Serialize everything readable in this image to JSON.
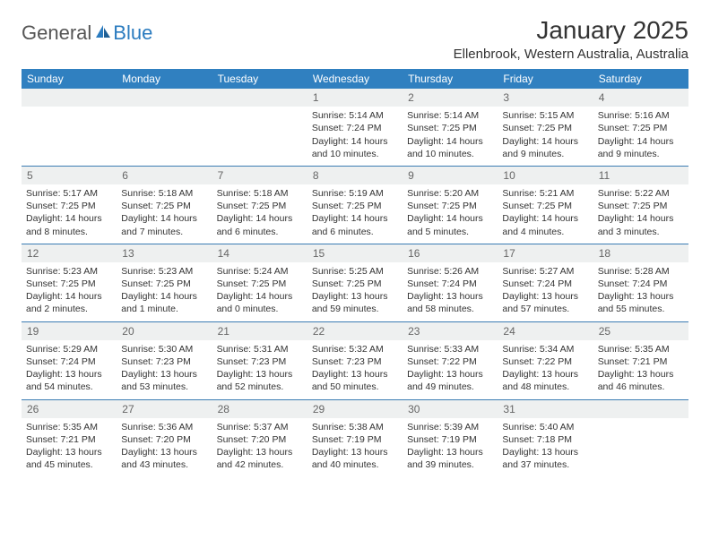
{
  "logo": {
    "text_general": "General",
    "text_blue": "Blue"
  },
  "title": "January 2025",
  "location": "Ellenbrook, Western Australia, Australia",
  "colors": {
    "header_bg": "#3080c0",
    "header_text": "#ffffff",
    "daynum_bg": "#eef0f0",
    "daynum_text": "#666666",
    "body_text": "#333333",
    "row_border": "#3b7cb3",
    "logo_gray": "#555555",
    "logo_blue": "#2a7bbf"
  },
  "typography": {
    "title_fontsize": 28,
    "location_fontsize": 15,
    "dayheader_fontsize": 12,
    "cell_fontsize": 10.5
  },
  "day_headers": [
    "Sunday",
    "Monday",
    "Tuesday",
    "Wednesday",
    "Thursday",
    "Friday",
    "Saturday"
  ],
  "weeks": [
    [
      null,
      null,
      null,
      {
        "n": "1",
        "sunrise": "5:14 AM",
        "sunset": "7:24 PM",
        "daylight": "14 hours and 10 minutes."
      },
      {
        "n": "2",
        "sunrise": "5:14 AM",
        "sunset": "7:25 PM",
        "daylight": "14 hours and 10 minutes."
      },
      {
        "n": "3",
        "sunrise": "5:15 AM",
        "sunset": "7:25 PM",
        "daylight": "14 hours and 9 minutes."
      },
      {
        "n": "4",
        "sunrise": "5:16 AM",
        "sunset": "7:25 PM",
        "daylight": "14 hours and 9 minutes."
      }
    ],
    [
      {
        "n": "5",
        "sunrise": "5:17 AM",
        "sunset": "7:25 PM",
        "daylight": "14 hours and 8 minutes."
      },
      {
        "n": "6",
        "sunrise": "5:18 AM",
        "sunset": "7:25 PM",
        "daylight": "14 hours and 7 minutes."
      },
      {
        "n": "7",
        "sunrise": "5:18 AM",
        "sunset": "7:25 PM",
        "daylight": "14 hours and 6 minutes."
      },
      {
        "n": "8",
        "sunrise": "5:19 AM",
        "sunset": "7:25 PM",
        "daylight": "14 hours and 6 minutes."
      },
      {
        "n": "9",
        "sunrise": "5:20 AM",
        "sunset": "7:25 PM",
        "daylight": "14 hours and 5 minutes."
      },
      {
        "n": "10",
        "sunrise": "5:21 AM",
        "sunset": "7:25 PM",
        "daylight": "14 hours and 4 minutes."
      },
      {
        "n": "11",
        "sunrise": "5:22 AM",
        "sunset": "7:25 PM",
        "daylight": "14 hours and 3 minutes."
      }
    ],
    [
      {
        "n": "12",
        "sunrise": "5:23 AM",
        "sunset": "7:25 PM",
        "daylight": "14 hours and 2 minutes."
      },
      {
        "n": "13",
        "sunrise": "5:23 AM",
        "sunset": "7:25 PM",
        "daylight": "14 hours and 1 minute."
      },
      {
        "n": "14",
        "sunrise": "5:24 AM",
        "sunset": "7:25 PM",
        "daylight": "14 hours and 0 minutes."
      },
      {
        "n": "15",
        "sunrise": "5:25 AM",
        "sunset": "7:25 PM",
        "daylight": "13 hours and 59 minutes."
      },
      {
        "n": "16",
        "sunrise": "5:26 AM",
        "sunset": "7:24 PM",
        "daylight": "13 hours and 58 minutes."
      },
      {
        "n": "17",
        "sunrise": "5:27 AM",
        "sunset": "7:24 PM",
        "daylight": "13 hours and 57 minutes."
      },
      {
        "n": "18",
        "sunrise": "5:28 AM",
        "sunset": "7:24 PM",
        "daylight": "13 hours and 55 minutes."
      }
    ],
    [
      {
        "n": "19",
        "sunrise": "5:29 AM",
        "sunset": "7:24 PM",
        "daylight": "13 hours and 54 minutes."
      },
      {
        "n": "20",
        "sunrise": "5:30 AM",
        "sunset": "7:23 PM",
        "daylight": "13 hours and 53 minutes."
      },
      {
        "n": "21",
        "sunrise": "5:31 AM",
        "sunset": "7:23 PM",
        "daylight": "13 hours and 52 minutes."
      },
      {
        "n": "22",
        "sunrise": "5:32 AM",
        "sunset": "7:23 PM",
        "daylight": "13 hours and 50 minutes."
      },
      {
        "n": "23",
        "sunrise": "5:33 AM",
        "sunset": "7:22 PM",
        "daylight": "13 hours and 49 minutes."
      },
      {
        "n": "24",
        "sunrise": "5:34 AM",
        "sunset": "7:22 PM",
        "daylight": "13 hours and 48 minutes."
      },
      {
        "n": "25",
        "sunrise": "5:35 AM",
        "sunset": "7:21 PM",
        "daylight": "13 hours and 46 minutes."
      }
    ],
    [
      {
        "n": "26",
        "sunrise": "5:35 AM",
        "sunset": "7:21 PM",
        "daylight": "13 hours and 45 minutes."
      },
      {
        "n": "27",
        "sunrise": "5:36 AM",
        "sunset": "7:20 PM",
        "daylight": "13 hours and 43 minutes."
      },
      {
        "n": "28",
        "sunrise": "5:37 AM",
        "sunset": "7:20 PM",
        "daylight": "13 hours and 42 minutes."
      },
      {
        "n": "29",
        "sunrise": "5:38 AM",
        "sunset": "7:19 PM",
        "daylight": "13 hours and 40 minutes."
      },
      {
        "n": "30",
        "sunrise": "5:39 AM",
        "sunset": "7:19 PM",
        "daylight": "13 hours and 39 minutes."
      },
      {
        "n": "31",
        "sunrise": "5:40 AM",
        "sunset": "7:18 PM",
        "daylight": "13 hours and 37 minutes."
      },
      null
    ]
  ],
  "labels": {
    "sunrise": "Sunrise:",
    "sunset": "Sunset:",
    "daylight": "Daylight:"
  }
}
